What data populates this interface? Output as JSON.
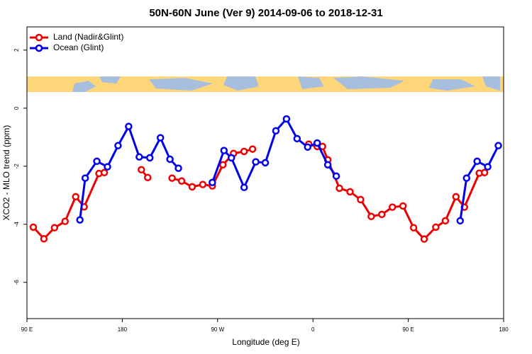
{
  "chart_data": {
    "type": "line",
    "title": "50N-60N June (Ver 9)   2014-09-06 to 2018-12-31",
    "x_label": "Longitude (deg E)",
    "y_label": "XCO2 - MLO trend (ppm)",
    "xlim": [
      90,
      540
    ],
    "ylim": [
      -7.25,
      2.8
    ],
    "xticks": [
      {
        "value": 90,
        "label": "90 E"
      },
      180,
      {
        "value": 270,
        "label": "90 W"
      },
      {
        "value": 360,
        "label": "0"
      },
      {
        "value": 450,
        "label": "90 E"
      },
      {
        "value": 540,
        "label": "180"
      }
    ],
    "yticks": [
      -6,
      -4,
      -2,
      0,
      2
    ],
    "legend": "topleft",
    "series": [
      {
        "name": "Land (Nadir&Glint)",
        "color": "#ee0000",
        "x": [
          96,
          106,
          116,
          126,
          136,
          144,
          158,
          163,
          180,
          198,
          204,
          215,
          227,
          236,
          246,
          256,
          265,
          275,
          285,
          295,
          303,
          330,
          356,
          364,
          369,
          374,
          385,
          395,
          405,
          415,
          425,
          435,
          445,
          455,
          465,
          476,
          485,
          495,
          503,
          517,
          522
        ],
        "values": [
          -4.1,
          -4.5,
          -4.12,
          -3.9,
          -3.05,
          -3.4,
          -2.25,
          -2.22,
          null,
          -2.12,
          -2.39,
          null,
          -2.41,
          -2.51,
          -2.71,
          -2.63,
          -2.68,
          -1.95,
          -1.56,
          -1.49,
          -1.41,
          null,
          -1.24,
          -1.32,
          -1.32,
          -1.78,
          -2.76,
          -2.88,
          -3.15,
          -3.73,
          -3.66,
          -3.41,
          -3.37,
          -4.12,
          -4.51,
          -4.1,
          -3.88,
          -3.05,
          -3.41,
          -2.24,
          -2.22
        ]
      },
      {
        "name": "Ocean (Glint)",
        "color": "#0000ee",
        "x": [
          140,
          145,
          156,
          166,
          176,
          186,
          196,
          206,
          216,
          225,
          233,
          250,
          265,
          276,
          283,
          295,
          306,
          315,
          325,
          335,
          345,
          355,
          364,
          374,
          382,
          440,
          499,
          505,
          515,
          525,
          535
        ],
        "values": [
          -3.85,
          -2.41,
          -1.83,
          -2.02,
          -1.29,
          -0.63,
          -1.68,
          -1.71,
          -1.02,
          -1.76,
          -2.07,
          null,
          -2.56,
          -1.46,
          -1.71,
          -2.73,
          -1.85,
          -1.88,
          -0.78,
          -0.37,
          -1.05,
          -1.34,
          -1.2,
          -1.95,
          -2.34,
          null,
          -3.88,
          -2.41,
          -1.83,
          -2.02,
          -1.29
        ]
      }
    ]
  }
}
